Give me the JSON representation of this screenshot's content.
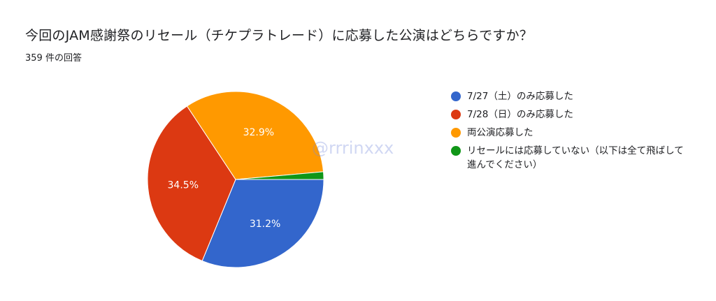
{
  "title": "今回のJAM感謝祭のリセール（チケプラトレード）に応募した公演はどちらですか？",
  "subtitle": "359 件の回答",
  "watermark": "@rrrinxxx",
  "chart_data": {
    "type": "pie",
    "title": "今回のJAM感謝祭のリセール（チケプラトレード）に応募した公演はどちらですか？",
    "total_responses": 359,
    "slices": [
      {
        "label": "7/27（土）のみ応募した",
        "value": 31.2,
        "value_label": "31.2%",
        "color": "#3366cc"
      },
      {
        "label": "7/28（日）のみ応募した",
        "value": 34.5,
        "value_label": "34.5%",
        "color": "#dc3912"
      },
      {
        "label": "両公演応募した",
        "value": 32.9,
        "value_label": "32.9%",
        "color": "#ff9900"
      },
      {
        "label": "リセールには応募していない（以下は全て飛ばして進んでください）",
        "value": 1.4,
        "value_label": "",
        "color": "#109618"
      }
    ],
    "legend_position": "right"
  }
}
